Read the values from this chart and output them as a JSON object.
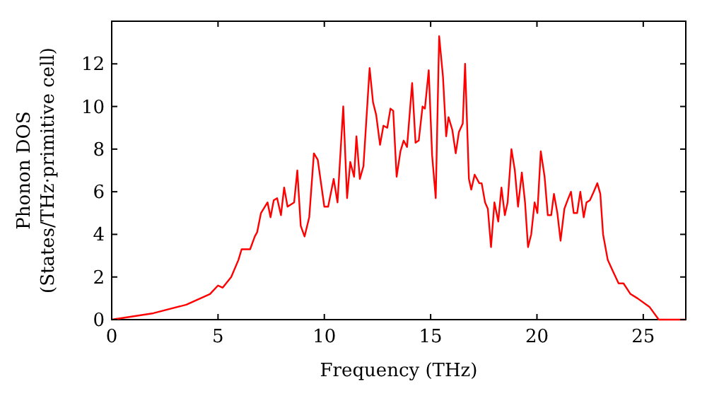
{
  "chart_data": {
    "type": "line",
    "xlabel": "Frequency (THz)",
    "ylabel": "Phonon DOS\n(States/THz·primitive cell)",
    "xlim": [
      0,
      27
    ],
    "ylim": [
      0,
      14
    ],
    "xticks": [
      0,
      5,
      10,
      15,
      20,
      25
    ],
    "yticks": [
      0,
      2,
      4,
      6,
      8,
      10,
      12
    ],
    "grid": false,
    "marker": "none",
    "line_style": "solid",
    "series": [
      {
        "color": "#ff0000",
        "x": [
          0,
          1.96,
          3.51,
          4.62,
          5.0,
          5.22,
          5.62,
          5.96,
          6.11,
          6.51,
          6.73,
          6.84,
          7.02,
          7.33,
          7.47,
          7.62,
          7.78,
          7.96,
          8.11,
          8.27,
          8.58,
          8.73,
          8.89,
          9.07,
          9.29,
          9.51,
          9.69,
          10.0,
          10.18,
          10.44,
          10.62,
          10.89,
          11.07,
          11.22,
          11.4,
          11.51,
          11.67,
          11.84,
          12.13,
          12.29,
          12.44,
          12.62,
          12.78,
          12.96,
          13.11,
          13.24,
          13.4,
          13.58,
          13.73,
          13.89,
          14.13,
          14.29,
          14.44,
          14.62,
          14.73,
          14.91,
          15.07,
          15.24,
          15.4,
          15.58,
          15.73,
          15.84,
          16.02,
          16.18,
          16.33,
          16.51,
          16.62,
          16.8,
          16.91,
          17.07,
          17.29,
          17.4,
          17.56,
          17.69,
          17.84,
          18.0,
          18.18,
          18.33,
          18.49,
          18.62,
          18.8,
          18.96,
          19.11,
          19.29,
          19.44,
          19.58,
          19.73,
          19.89,
          20.02,
          20.18,
          20.36,
          20.51,
          20.67,
          20.8,
          20.96,
          21.11,
          21.29,
          21.44,
          21.6,
          21.73,
          21.89,
          22.04,
          22.2,
          22.33,
          22.49,
          22.67,
          22.84,
          22.98,
          23.11,
          23.33,
          23.56,
          23.84,
          24.07,
          24.4,
          24.73,
          25.29,
          25.73,
          27
        ],
        "values": [
          0,
          0.3,
          0.7,
          1.2,
          1.6,
          1.5,
          2.0,
          2.8,
          3.3,
          3.3,
          3.9,
          4.1,
          5.0,
          5.5,
          4.8,
          5.6,
          5.7,
          4.9,
          6.2,
          5.3,
          5.5,
          7.0,
          4.4,
          3.9,
          4.8,
          7.8,
          7.5,
          5.3,
          5.3,
          6.6,
          5.5,
          10.0,
          5.7,
          7.4,
          6.7,
          8.6,
          6.6,
          7.2,
          11.8,
          10.2,
          9.6,
          8.2,
          9.1,
          9.0,
          9.9,
          9.8,
          6.7,
          7.9,
          8.4,
          8.1,
          11.1,
          8.3,
          8.4,
          10.0,
          9.9,
          11.7,
          7.7,
          5.7,
          13.3,
          11.4,
          8.6,
          9.5,
          8.9,
          7.8,
          8.8,
          9.2,
          12.0,
          6.6,
          6.1,
          6.8,
          6.4,
          6.4,
          5.5,
          5.2,
          3.4,
          5.5,
          4.6,
          6.2,
          4.9,
          5.5,
          8.0,
          7.0,
          5.3,
          6.9,
          5.5,
          3.4,
          4.0,
          5.5,
          5.0,
          7.9,
          6.7,
          4.9,
          4.9,
          5.9,
          5.0,
          3.7,
          5.2,
          5.6,
          6.0,
          5.0,
          5.0,
          6.0,
          4.8,
          5.5,
          5.6,
          6.0,
          6.4,
          5.9,
          4.0,
          2.8,
          2.3,
          1.7,
          1.7,
          1.2,
          1.0,
          0.6,
          0,
          0
        ]
      }
    ]
  }
}
